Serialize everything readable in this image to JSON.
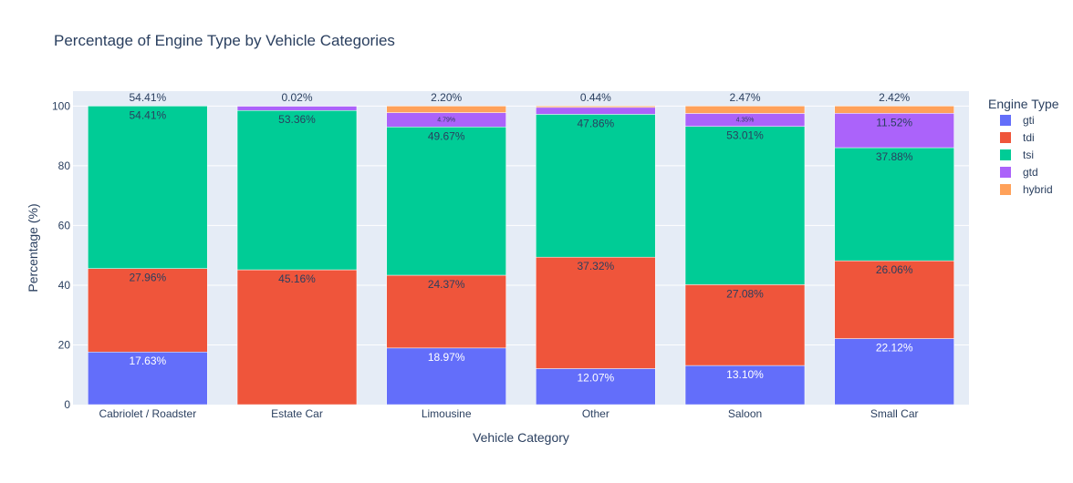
{
  "chart_data": {
    "type": "bar",
    "stacked": true,
    "title": "Percentage of Engine Type by Vehicle Categories",
    "xlabel": "Vehicle Category",
    "ylabel": "Percentage (%)",
    "ylim": [
      0,
      105
    ],
    "yticks": [
      0,
      20,
      40,
      60,
      80,
      100
    ],
    "grid": true,
    "legend": {
      "title": "Engine Type",
      "position": "right"
    },
    "categories": [
      "Cabriolet / Roadster",
      "Estate Car",
      "Limousine",
      "Other",
      "Saloon",
      "Small Car"
    ],
    "series": [
      {
        "name": "gti",
        "color": "#636efa",
        "values": [
          17.63,
          0,
          18.97,
          12.07,
          13.1,
          22.12
        ],
        "labels": [
          "17.63%",
          "",
          "18.97%",
          "12.07%",
          "13.10%",
          "22.12%"
        ]
      },
      {
        "name": "tdi",
        "color": "#ef553b",
        "values": [
          27.96,
          45.16,
          24.37,
          37.32,
          27.08,
          26.06
        ],
        "labels": [
          "27.96%",
          "45.16%",
          "24.37%",
          "37.32%",
          "27.08%",
          "26.06%"
        ]
      },
      {
        "name": "tsi",
        "color": "#00cc96",
        "values": [
          54.41,
          53.36,
          49.67,
          47.86,
          53.01,
          37.88
        ],
        "labels": [
          "54.41%",
          "53.36%",
          "49.67%",
          "47.86%",
          "53.01%",
          "37.88%"
        ]
      },
      {
        "name": "gtd",
        "color": "#ab63fa",
        "values": [
          0,
          1.46,
          4.79,
          2.31,
          4.35,
          11.52
        ],
        "labels": [
          "",
          "",
          "4.79%",
          "",
          "4.35%",
          "11.52%"
        ]
      },
      {
        "name": "hybrid",
        "color": "#ffa15a",
        "values": [
          0,
          0.02,
          2.2,
          0.44,
          2.47,
          2.42
        ],
        "labels": [
          "",
          "",
          "",
          "",
          "",
          ""
        ]
      }
    ],
    "top_labels": [
      "54.41%",
      "0.02%",
      "2.20%",
      "0.44%",
      "2.47%",
      "2.42%"
    ]
  }
}
